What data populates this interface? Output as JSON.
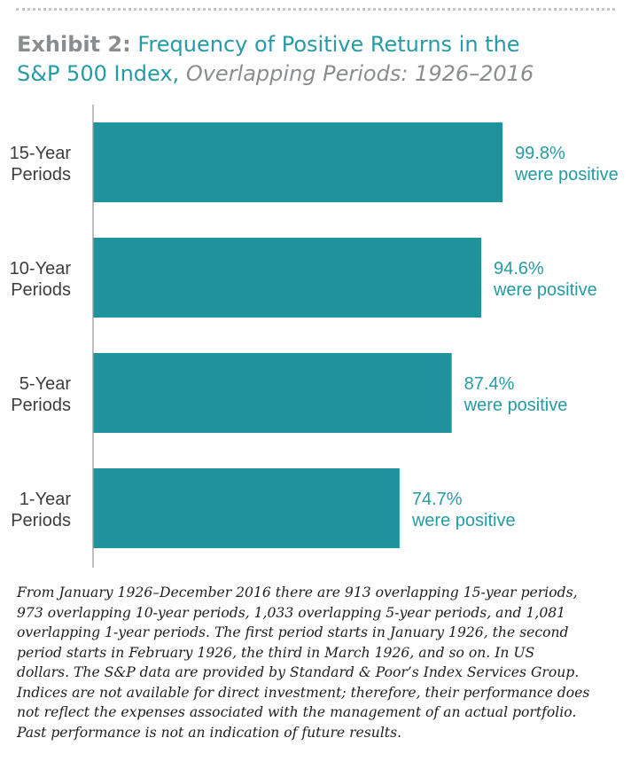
{
  "header": {
    "title_prefix": "Exhibit 2:",
    "title_line1": "Frequency of Positive Returns in the",
    "title_line2": "S&P 500 Index,",
    "subtitle": "Overlapping Periods: 1926–2016"
  },
  "chart_data": {
    "type": "bar",
    "orientation": "horizontal",
    "categories": [
      [
        "15-Year",
        "Periods"
      ],
      [
        "10-Year",
        "Periods"
      ],
      [
        "5-Year",
        "Periods"
      ],
      [
        "1-Year",
        "Periods"
      ]
    ],
    "values": [
      99.8,
      94.6,
      87.4,
      74.7
    ],
    "value_labels": [
      "99.8%",
      "94.6%",
      "87.4%",
      "74.7%"
    ],
    "value_suffix": "were positive",
    "xlim": [
      0,
      100
    ],
    "grid": false,
    "bar_color": "#1f939c",
    "label_color": "#259ba5"
  },
  "footnote": {
    "lines": [
      "From January 1926–December 2016 there are 913 overlapping 15-year periods,",
      "973 overlapping 10-year periods, 1,033 overlapping 5-year periods, and 1,081",
      "overlapping 1-year periods. The first period starts in January 1926, the second",
      "period starts in February 1926, the third in March 1926, and so on. In US",
      "dollars. The S&P data are provided by Standard & Poor’s Index Services Group.",
      "Indices are not available for direct investment; therefore, their performance does",
      "not reflect the expenses associated with the management of an actual portfolio.",
      "Past performance is not an indication of future results."
    ]
  }
}
